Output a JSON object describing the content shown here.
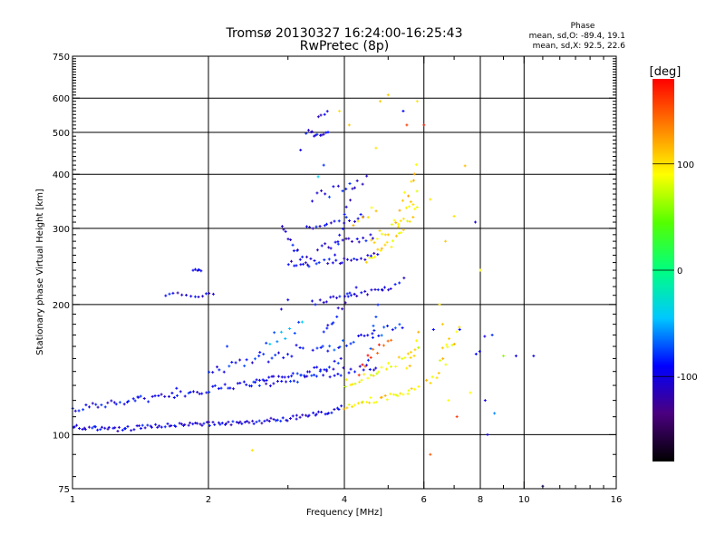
{
  "chart_data": {
    "type": "scatter",
    "title": "Tromsø 20130327 16:24:00-16:25:43",
    "subtitle": "RwPretec (8p)",
    "xlabel": "Frequency [MHz]",
    "ylabel": "Stationary phase Virtual Height [km]",
    "x_scale": "log",
    "y_scale": "log",
    "xlim": [
      1,
      16
    ],
    "ylim": [
      75,
      750
    ],
    "x_ticks": [
      1,
      2,
      4,
      6,
      8,
      10,
      16
    ],
    "x_minor_ticks": [
      3,
      5,
      7,
      9,
      11,
      12,
      13,
      14,
      15
    ],
    "y_ticks": [
      75,
      100,
      200,
      300,
      400,
      500,
      600,
      750
    ],
    "x_gridlines": [
      2,
      4,
      6,
      8,
      10
    ],
    "y_gridlines": [
      100,
      200,
      300,
      400,
      500,
      600
    ],
    "grid": true,
    "phase_stats": {
      "heading": "Phase",
      "line_o": "mean, sd,O: -89.4, 19.1",
      "line_x": "mean, sd,X:  92.5, 22.6"
    },
    "colorbar": {
      "unit": "[deg]",
      "range": [
        -180,
        180
      ],
      "ticks": [
        100,
        0,
        -100
      ],
      "tick_labels": [
        "100",
        "0",
        "-100"
      ],
      "colors": [
        "#000000",
        "#4b007f",
        "#0000ff",
        "#00c8ff",
        "#00ff80",
        "#55ff00",
        "#ffff00",
        "#ff8000",
        "#ff0000"
      ]
    },
    "traces": [
      {
        "x": [
          1.0,
          1.3,
          1.6,
          2.0,
          2.5,
          3.0,
          3.4,
          3.7,
          4.0
        ],
        "y": [
          104,
          103,
          105,
          106,
          107,
          109,
          111,
          113,
          116
        ],
        "phase": -100,
        "jitter": 0.012,
        "step": 0.012
      },
      {
        "x": [
          4.0,
          4.3,
          4.6,
          5.0,
          5.5,
          5.9
        ],
        "y": [
          116,
          118,
          120,
          122,
          126,
          128
        ],
        "phase": 100,
        "jitter": 0.015,
        "step": 0.014
      },
      {
        "x": [
          1.0,
          1.2,
          1.4,
          1.6,
          1.8,
          2.0,
          2.4,
          2.8,
          3.2,
          3.6,
          4.0
        ],
        "y": [
          115,
          118,
          120,
          123,
          125,
          127,
          130,
          134,
          138,
          142,
          148
        ],
        "phase": -95,
        "jitter": 0.02,
        "step": 0.016
      },
      {
        "x": [
          2.0,
          2.3,
          2.7,
          3.0,
          3.3
        ],
        "y": [
          140,
          145,
          150,
          155,
          160
        ],
        "phase": -90,
        "jitter": 0.03,
        "step": 0.02
      },
      {
        "x": [
          2.5,
          2.8,
          3.2,
          3.6,
          4.0,
          4.4,
          4.8
        ],
        "y": [
          130,
          132,
          135,
          138,
          140,
          142,
          145
        ],
        "phase": -95,
        "jitter": 0.02,
        "step": 0.018
      },
      {
        "x": [
          3.4,
          3.8,
          4.2,
          4.6,
          5.0,
          5.5
        ],
        "y": [
          155,
          160,
          165,
          170,
          175,
          180
        ],
        "phase": -85,
        "jitter": 0.02,
        "step": 0.018
      },
      {
        "x": [
          4.0,
          4.3,
          4.7,
          5.1,
          5.6,
          5.9
        ],
        "y": [
          132,
          135,
          140,
          146,
          152,
          160
        ],
        "phase": 90,
        "jitter": 0.025,
        "step": 0.016
      },
      {
        "x": [
          3.4,
          3.8,
          4.2,
          4.6,
          5.0,
          5.5
        ],
        "y": [
          200,
          205,
          210,
          215,
          220,
          228
        ],
        "phase": -100,
        "jitter": 0.02,
        "step": 0.018
      },
      {
        "x": [
          3.0,
          3.3,
          3.6,
          3.9,
          4.2,
          4.5,
          4.8
        ],
        "y": [
          250,
          248,
          250,
          252,
          255,
          258,
          262
        ],
        "phase": -100,
        "jitter": 0.015,
        "step": 0.016
      },
      {
        "x": [
          2.9,
          3.0,
          3.1,
          3.2,
          3.4
        ],
        "y": [
          300,
          285,
          270,
          258,
          250
        ],
        "phase": -100,
        "jitter": 0.02,
        "step": 0.012
      },
      {
        "x": [
          3.5,
          3.8,
          4.1,
          4.4,
          4.7
        ],
        "y": [
          270,
          275,
          280,
          285,
          290
        ],
        "phase": -100,
        "jitter": 0.02,
        "step": 0.018
      },
      {
        "x": [
          3.3,
          3.6,
          3.9,
          4.2,
          4.5
        ],
        "y": [
          300,
          305,
          310,
          315,
          320
        ],
        "phase": -95,
        "jitter": 0.02,
        "step": 0.018
      },
      {
        "x": [
          3.8,
          3.9,
          4.0,
          4.1,
          4.2
        ],
        "y": [
          260,
          290,
          320,
          350,
          380
        ],
        "phase": -100,
        "jitter": 0.02,
        "step": 0.014
      },
      {
        "x": [
          3.6,
          3.8,
          4.0,
          4.2,
          4.3
        ],
        "y": [
          170,
          185,
          200,
          215,
          230
        ],
        "phase": -100,
        "jitter": 0.02,
        "step": 0.014
      },
      {
        "x": [
          4.5,
          4.8,
          5.2,
          5.6,
          5.9
        ],
        "y": [
          250,
          265,
          285,
          310,
          340
        ],
        "phase": 100,
        "jitter": 0.025,
        "step": 0.014
      },
      {
        "x": [
          4.6,
          5.0,
          5.4,
          5.7,
          5.9
        ],
        "y": [
          280,
          295,
          320,
          350,
          390
        ],
        "phase": 100,
        "jitter": 0.03,
        "step": 0.014
      },
      {
        "x": [
          5.2,
          5.4,
          5.6,
          5.8,
          5.9
        ],
        "y": [
          300,
          340,
          380,
          430,
          500
        ],
        "phase": 105,
        "jitter": 0.03,
        "step": 0.012
      },
      {
        "x": [
          4.2,
          4.5,
          4.8
        ],
        "y": [
          300,
          320,
          340
        ],
        "phase": 110,
        "jitter": 0.03,
        "step": 0.02
      },
      {
        "x": [
          3.3,
          3.5,
          3.7
        ],
        "y": [
          500,
          495,
          500
        ],
        "phase": -100,
        "jitter": 0.015,
        "step": 0.01
      },
      {
        "x": [
          3.5,
          3.6,
          3.7
        ],
        "y": [
          540,
          550,
          560
        ],
        "phase": -100,
        "jitter": 0.015,
        "step": 0.012
      },
      {
        "x": [
          2.7,
          2.9,
          3.1,
          3.3
        ],
        "y": [
          165,
          170,
          175,
          180
        ],
        "phase": -60,
        "jitter": 0.03,
        "step": 0.02
      },
      {
        "x": [
          1.6,
          1.75,
          1.9,
          2.1
        ],
        "y": [
          210,
          212,
          210,
          211
        ],
        "phase": -100,
        "jitter": 0.01,
        "step": 0.02
      },
      {
        "x": [
          1.85,
          1.9,
          1.95
        ],
        "y": [
          240,
          240,
          240
        ],
        "phase": -100,
        "jitter": 0.005,
        "step": 0.01
      },
      {
        "x": [
          6.1,
          6.4,
          6.7,
          7.0,
          7.3
        ],
        "y": [
          130,
          138,
          150,
          165,
          180
        ],
        "phase": 100,
        "jitter": 0.035,
        "step": 0.015
      },
      {
        "x": [
          6.5,
          6.7,
          6.9
        ],
        "y": [
          150,
          160,
          170
        ],
        "phase": 95,
        "jitter": 0.03,
        "step": 0.015
      },
      {
        "x": [
          7.4,
          7.5
        ],
        "y": [
          420,
          440
        ],
        "phase": 120,
        "jitter": 0.02,
        "step": 0.01
      },
      {
        "x": [
          7.8,
          8.0,
          8.3
        ],
        "y": [
          150,
          160,
          170
        ],
        "phase": -95,
        "jitter": 0.04,
        "step": 0.02
      },
      {
        "x": [
          4.3,
          4.5,
          4.8,
          5.2
        ],
        "y": [
          140,
          150,
          160,
          170
        ],
        "phase": 160,
        "jitter": 0.02,
        "step": 0.018
      },
      {
        "x": [
          3.4,
          3.8,
          4.2,
          4.6
        ],
        "y": [
          350,
          365,
          380,
          395
        ],
        "phase": -95,
        "jitter": 0.03,
        "step": 0.022
      },
      {
        "x": [
          4.5,
          4.7,
          4.9
        ],
        "y": [
          150,
          190,
          230
        ],
        "phase": -90,
        "jitter": 0.02,
        "step": 0.012
      },
      {
        "x": [
          5.5,
          5.7,
          5.9
        ],
        "y": [
          140,
          160,
          180
        ],
        "phase": 100,
        "jitter": 0.02,
        "step": 0.012
      }
    ],
    "scattered": [
      [
        6.2,
        90,
        150
      ],
      [
        2.5,
        92,
        100
      ],
      [
        6.5,
        200,
        100
      ],
      [
        6.6,
        180,
        110
      ],
      [
        7.2,
        175,
        -90
      ],
      [
        8.5,
        170,
        -80
      ],
      [
        9.0,
        152,
        60
      ],
      [
        9.6,
        152,
        -100
      ],
      [
        10.5,
        152,
        -100
      ],
      [
        8.2,
        120,
        -100
      ],
      [
        8.3,
        100,
        -100
      ],
      [
        11.0,
        76,
        -100
      ],
      [
        5.0,
        610,
        110
      ],
      [
        5.5,
        520,
        160
      ],
      [
        5.8,
        590,
        100
      ],
      [
        6.7,
        280,
        110
      ],
      [
        7.0,
        320,
        100
      ],
      [
        6.2,
        350,
        100
      ],
      [
        8.0,
        240,
        90
      ],
      [
        5.4,
        560,
        -90
      ],
      [
        4.8,
        590,
        110
      ],
      [
        6.0,
        520,
        170
      ],
      [
        3.6,
        420,
        -80
      ],
      [
        3.2,
        455,
        -100
      ],
      [
        3.5,
        395,
        -40
      ],
      [
        2.6,
        155,
        -90
      ],
      [
        2.2,
        160,
        -80
      ],
      [
        1.4,
        122,
        -100
      ],
      [
        1.7,
        128,
        -90
      ],
      [
        2.9,
        195,
        -100
      ],
      [
        3.0,
        205,
        -95
      ],
      [
        7.6,
        125,
        90
      ],
      [
        6.8,
        120,
        90
      ],
      [
        7.1,
        110,
        160
      ],
      [
        6.3,
        175,
        -90
      ],
      [
        7.8,
        310,
        -100
      ],
      [
        8.6,
        112,
        -60
      ],
      [
        4.1,
        520,
        110
      ],
      [
        4.7,
        460,
        100
      ],
      [
        3.9,
        560,
        100
      ]
    ]
  }
}
